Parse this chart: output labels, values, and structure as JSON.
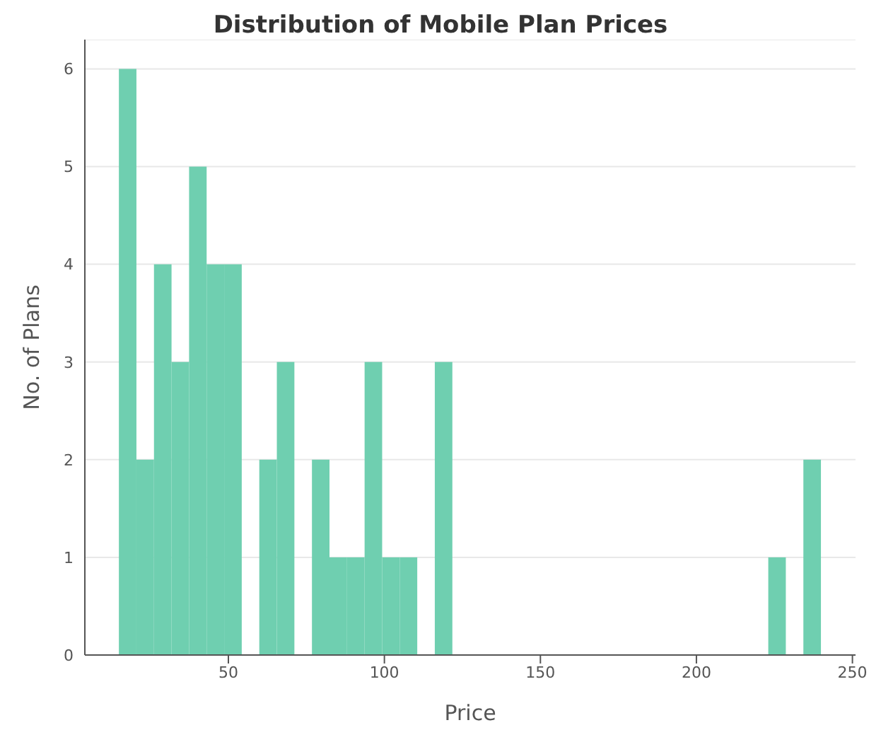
{
  "chart_data": {
    "type": "histogram",
    "title": "Distribution of Mobile Plan Prices",
    "xlabel": "Price",
    "ylabel": "No. of Plans",
    "bins": [
      15,
      20.625,
      26.25,
      31.875,
      37.5,
      43.125,
      48.75,
      54.375,
      60,
      65.625,
      71.25,
      76.875,
      82.5,
      88.125,
      93.75,
      99.375,
      105,
      110.625,
      116.25,
      121.875,
      127.5,
      133.125,
      138.75,
      144.375,
      150,
      155.625,
      161.25,
      166.875,
      172.5,
      178.125,
      183.75,
      189.375,
      195,
      200.625,
      206.25,
      211.875,
      217.5,
      223.125,
      228.75,
      234.375,
      240
    ],
    "values": [
      6,
      2,
      4,
      3,
      5,
      4,
      4,
      0,
      2,
      3,
      0,
      2,
      1,
      1,
      3,
      1,
      1,
      0,
      3,
      0,
      0,
      0,
      0,
      0,
      0,
      0,
      0,
      0,
      0,
      0,
      0,
      0,
      0,
      0,
      0,
      0,
      0,
      1,
      0,
      2
    ],
    "color": "#6fcfb0",
    "xlim": [
      4,
      251
    ],
    "xticks": [
      50,
      100,
      150,
      200,
      250
    ],
    "ylim": [
      0,
      6.3
    ],
    "yticks": [
      0,
      1,
      2,
      3,
      4,
      5,
      6
    ],
    "grid": "y"
  }
}
